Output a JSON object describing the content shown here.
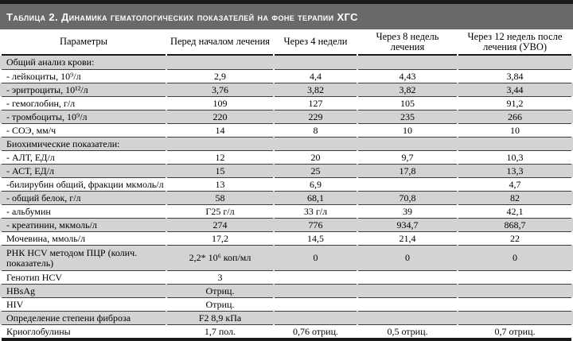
{
  "table": {
    "title": "Таблица 2. Динамика гематологических показателей на фоне терапии ХГС",
    "columns": [
      "Параметры",
      "Перед началом лечения",
      "Через 4 недели",
      "Через 8 недель лечения",
      "Через 12 недель после лечения (УВО)"
    ],
    "rows": [
      {
        "label": "Общий анализ крови:",
        "values": [
          "",
          "",
          "",
          ""
        ]
      },
      {
        "label": "- лейкоциты, 10⁹/л",
        "values": [
          "2,9",
          "4,4",
          "4,43",
          "3,84"
        ]
      },
      {
        "label": "- эритроциты, 10¹²/л",
        "values": [
          "3,76",
          "3,82",
          "3,82",
          "3,44"
        ]
      },
      {
        "label": "- гемоглобин, г/л",
        "values": [
          "109",
          "127",
          "105",
          "91,2"
        ]
      },
      {
        "label": "- тромбоциты, 10⁹/л",
        "values": [
          "220",
          "229",
          "235",
          "266"
        ]
      },
      {
        "label": "- СОЭ, мм/ч",
        "values": [
          "14",
          "8",
          "10",
          "10"
        ]
      },
      {
        "label": "Биохимические показатели:",
        "values": [
          "",
          "",
          "",
          ""
        ]
      },
      {
        "label": "- АЛТ, ЕД/л",
        "values": [
          "12",
          "20",
          "9,7",
          "10,3"
        ]
      },
      {
        "label": "- АСТ, ЕД/л",
        "values": [
          "15",
          "25",
          "17,8",
          "13,3"
        ]
      },
      {
        "label": "-билирубин общий, фракции мкмоль/л",
        "values": [
          "13",
          "6,9",
          "",
          "4,7"
        ]
      },
      {
        "label": "- общий белок, г/л",
        "values": [
          "58",
          "68,1",
          "70,8",
          "82"
        ]
      },
      {
        "label": "- альбумин",
        "values": [
          "Г25 г/л",
          "33 г/л",
          "39",
          "42,1"
        ]
      },
      {
        "label": "- креатинин, мкмоль/л",
        "values": [
          "274",
          "776",
          "934,7",
          "868,7"
        ]
      },
      {
        "label": "Мочевина, ммоль/л",
        "values": [
          "17,2",
          "14,5",
          "21,4",
          "22"
        ]
      },
      {
        "label": "РНК HCV методом ПЦР (колич. показатель)",
        "values": [
          "2,2* 10⁶ коп/мл",
          "0",
          "0",
          "0"
        ]
      },
      {
        "label": "Генотип HCV",
        "values": [
          "3",
          "",
          "",
          ""
        ]
      },
      {
        "label": "HBsAg",
        "values": [
          "Отриц.",
          "",
          "",
          ""
        ]
      },
      {
        "label": "HIV",
        "values": [
          "Отриц.",
          "",
          "",
          ""
        ]
      },
      {
        "label": "Определение степени фиброза",
        "values": [
          "F2 8,9 кПа",
          "",
          "",
          ""
        ]
      },
      {
        "label": "Криоглобулины",
        "values": [
          "1,7 пол.",
          "0,76 отриц.",
          "0,5 отриц.",
          "0,7 отриц."
        ]
      }
    ]
  },
  "colors": {
    "title_bar_bg": "#696969",
    "title_text": "#ffffff",
    "row_shaded": "#d3d3d3",
    "row_plain": "#ffffff",
    "rule_thin": "#3c3c3c",
    "rule_thick": "#1a1a1a"
  }
}
